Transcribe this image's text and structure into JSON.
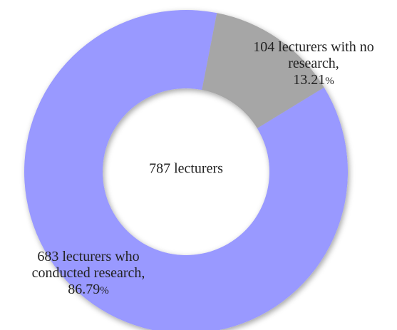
{
  "chart_data": {
    "type": "pie",
    "donut": true,
    "center_label": "787 lecturers",
    "slices": [
      {
        "name": "lecturers who conducted research",
        "value": 683,
        "percent": 86.79,
        "label_lines": [
          "683 lecturers who",
          "conducted research,"
        ],
        "percent_text": "86.79%",
        "color": "#9999ff"
      },
      {
        "name": "lecturers with no research",
        "value": 104,
        "percent": 13.21,
        "label_lines": [
          "104 lecturers with no",
          "research,"
        ],
        "percent_text": "13.21%",
        "color": "#a6a6a6"
      }
    ],
    "title": "",
    "legend": "none"
  }
}
